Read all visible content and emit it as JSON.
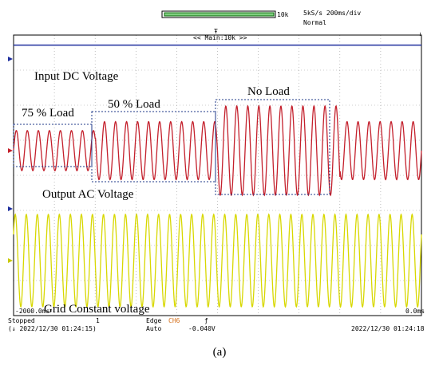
{
  "header": {
    "record_length": "10k",
    "sample_rate": "5kS/s 200ms/div",
    "trigger_mode": "Normal",
    "zoom_label": "<< Main:10k >>"
  },
  "scale": {
    "time_left": "-2000.0ms",
    "time_right": "0.0ms"
  },
  "status": {
    "state": "Stopped",
    "acq_count": "1",
    "trigger_type": "Edge",
    "trigger_channel": "CH6",
    "mode": "Auto",
    "trigger_level": "-0.040V",
    "start_time": "(↓ 2022/12/30 01:24:15)",
    "end_time": "2022/12/30 01:24:18"
  },
  "caption": "(a)",
  "colors": {
    "dc": "#1f2f9e",
    "ac": "#c4202c",
    "grid": "#d8d800",
    "box": "#1f3a8a"
  },
  "chart_data": {
    "type": "line",
    "xlim": [
      -2000,
      0
    ],
    "x_unit": "ms",
    "annotations": {
      "input_dc": "Input DC Voltage",
      "load_75": "75 % Load",
      "load_50": "50 % Load",
      "no_load": "No Load",
      "output_ac": "Output AC Voltage",
      "grid_const": "Grid Constant voltage"
    },
    "series": [
      {
        "name": "Input DC Voltage",
        "kind": "dc",
        "level": 0.88
      },
      {
        "name": "Output AC Voltage",
        "kind": "ac",
        "cycles": 37,
        "segments": [
          {
            "label": "75 % Load",
            "x_start": -2000,
            "x_end": -1600,
            "amplitude": 0.45
          },
          {
            "label": "50 % Load",
            "x_start": -1600,
            "x_end": -1000,
            "amplitude": 0.65
          },
          {
            "label": "No Load",
            "x_start": -1000,
            "x_end": -400,
            "amplitude": 1.0
          },
          {
            "label": "",
            "x_start": -400,
            "x_end": 0,
            "amplitude": 0.65
          }
        ]
      },
      {
        "name": "Grid Constant voltage",
        "kind": "ac",
        "cycles": 37,
        "amplitude": 1.0
      }
    ]
  }
}
